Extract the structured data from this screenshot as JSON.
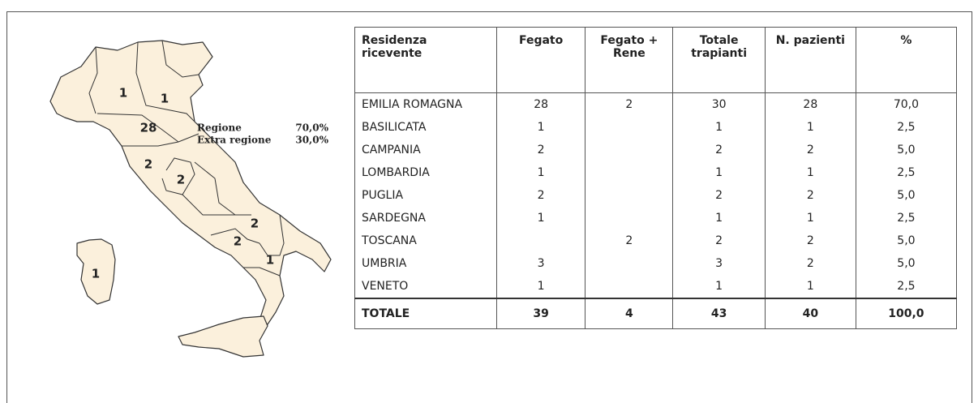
{
  "map": {
    "labels": [
      "1",
      "1",
      "28",
      "2",
      "2",
      "2",
      "2",
      "1",
      "1"
    ],
    "legend": [
      [
        "Regione",
        "70,0%"
      ],
      [
        "Extra regione",
        "30,0%"
      ]
    ]
  },
  "table": {
    "header": [
      "Residenza ricevente",
      "Fegato",
      "Fegato + Rene",
      "Totale trapianti",
      "N. pazienti",
      "%"
    ],
    "rows": [
      [
        "EMILIA ROMAGNA",
        "28",
        "2",
        "30",
        "28",
        "70,0"
      ],
      [
        "BASILICATA",
        "1",
        null,
        "1",
        "1",
        "2,5"
      ],
      [
        "CAMPANIA",
        "2",
        null,
        "2",
        "2",
        "5,0"
      ],
      [
        "LOMBARDIA",
        "1",
        null,
        "1",
        "1",
        "2,5"
      ],
      [
        "PUGLIA",
        "2",
        null,
        "2",
        "2",
        "5,0"
      ],
      [
        "SARDEGNA",
        "1",
        null,
        "1",
        "1",
        "2,5"
      ],
      [
        "TOSCANA",
        null,
        "2",
        "2",
        "2",
        "5,0"
      ],
      [
        "UMBRIA",
        "3",
        null,
        "3",
        "2",
        "5,0"
      ],
      [
        "VENETO",
        "1",
        null,
        "1",
        "1",
        "2,5"
      ]
    ],
    "total": [
      "TOTALE",
      "39",
      "4",
      "43",
      "40",
      "100,0"
    ]
  }
}
